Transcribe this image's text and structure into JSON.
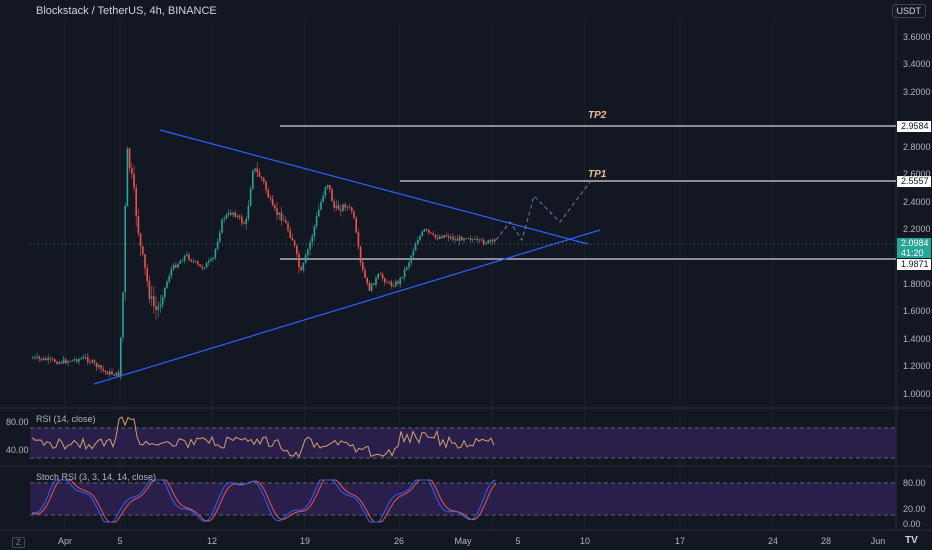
{
  "header": {
    "title": "Blockstack / TetherUS, 4h, BINANCE",
    "currency": "USDT"
  },
  "price_axis": {
    "labels": [
      "3.6000",
      "3.4000",
      "3.2000",
      "2.8000",
      "2.6000",
      "2.4000",
      "2.2000",
      "1.8000",
      "1.6000",
      "1.4000",
      "1.2000",
      "1.0000"
    ]
  },
  "levels": {
    "tp2_label": "TP2",
    "tp2_value": "2.9584",
    "tp1_label": "TP1",
    "tp1_value": "2.5557",
    "support_value": "1.9871",
    "last_price": "2.0984",
    "countdown": "41:20"
  },
  "rsi_pane": {
    "title": "RSI (14, close)",
    "labels": [
      "80.00",
      "40.00"
    ]
  },
  "stoch_pane": {
    "title": "Stoch RSI (3, 3, 14, 14, close)",
    "labels": [
      "80.00",
      "20.00",
      "0.00"
    ]
  },
  "time_axis": {
    "labels": [
      "Apr",
      "5",
      "12",
      "19",
      "26",
      "May",
      "5",
      "10",
      "17",
      "24",
      "28",
      "Jun"
    ]
  },
  "footer": {
    "corner": "Z",
    "logo": "TV"
  },
  "colors": {
    "background": "#131722",
    "up_candle": "#26a69a",
    "down_candle": "#ef5350",
    "trendline": "#2962ff",
    "rsi_line": "#d1a070",
    "stoch_k": "#2962ff",
    "stoch_d": "#ef5350",
    "band_fill": "#2a1f4a"
  }
}
